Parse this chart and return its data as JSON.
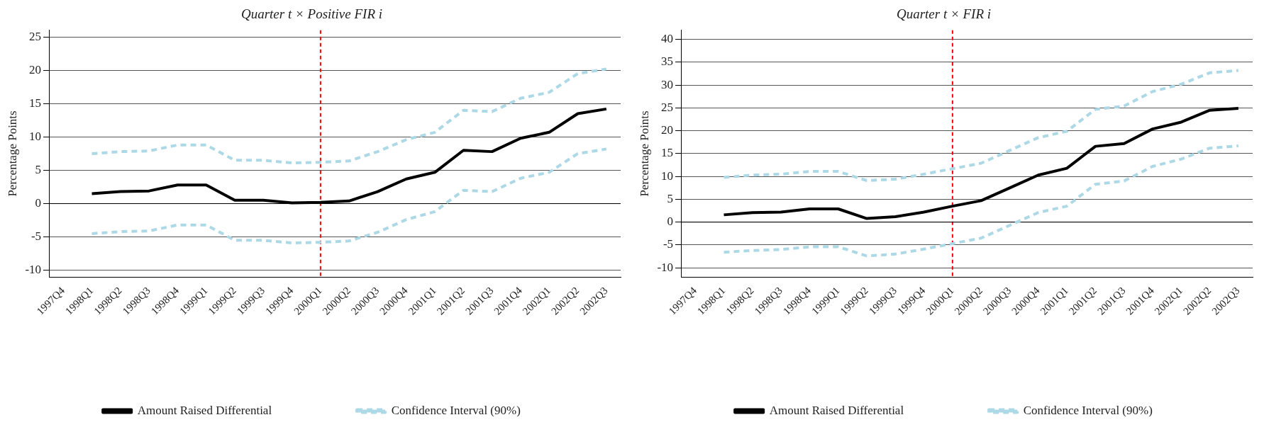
{
  "chart_data": [
    {
      "type": "line",
      "title": "Quarter t × Positive FIR i",
      "ylabel": "Percentage Points",
      "categories": [
        "1997Q4",
        "1998Q1",
        "1998Q2",
        "1998Q3",
        "1998Q4",
        "1999Q1",
        "1999Q2",
        "1999Q3",
        "1999Q4",
        "2000Q1",
        "2000Q2",
        "2000Q3",
        "2000Q4",
        "2001Q1",
        "2001Q2",
        "2001Q3",
        "2001Q4",
        "2002Q1",
        "2002Q2",
        "2002Q3"
      ],
      "series": [
        {
          "name": "Amount Raised Differential",
          "color": "#000000",
          "line_style": "solid",
          "values": [
            null,
            1.5,
            1.8,
            1.9,
            2.8,
            2.8,
            0.5,
            0.5,
            0.1,
            0.2,
            0.4,
            1.8,
            3.7,
            4.7,
            8.0,
            7.8,
            9.8,
            10.7,
            13.5,
            14.2
          ]
        },
        {
          "name": "Confidence Interval (90%)",
          "color": "#add8e6",
          "line_style": "dashed",
          "values": [
            null,
            7.5,
            7.8,
            7.9,
            8.8,
            8.8,
            6.5,
            6.5,
            6.1,
            6.2,
            6.4,
            7.8,
            9.6,
            10.7,
            14.0,
            13.8,
            15.8,
            16.7,
            19.5,
            20.2
          ]
        },
        {
          "color": "#add8e6",
          "line_style": "dashed",
          "values": [
            null,
            -4.5,
            -4.2,
            -4.1,
            -3.2,
            -3.2,
            -5.5,
            -5.5,
            -5.9,
            -5.8,
            -5.6,
            -4.3,
            -2.4,
            -1.2,
            2.0,
            1.8,
            3.8,
            4.7,
            7.5,
            8.2
          ]
        }
      ],
      "ylim": [
        -11,
        26
      ],
      "yticks": [
        -10,
        -5,
        0,
        5,
        10,
        15,
        20,
        25
      ],
      "grid": "y",
      "legend": "bottom",
      "ref_lines": [
        {
          "axis": "x",
          "value": "2000Q1",
          "color": "#ff0000",
          "line_style": "dashed"
        },
        {
          "axis": "y",
          "value": 0,
          "color": "#000000",
          "line_style": "solid"
        }
      ]
    },
    {
      "type": "line",
      "title": "Quarter t × FIR i",
      "ylabel": "Percentage Points",
      "categories": [
        "1997Q4",
        "1998Q1",
        "1998Q2",
        "1998Q3",
        "1998Q4",
        "1999Q1",
        "1999Q2",
        "1999Q3",
        "1999Q4",
        "2000Q1",
        "2000Q2",
        "2000Q3",
        "2000Q4",
        "2001Q1",
        "2001Q2",
        "2001Q3",
        "2001Q4",
        "2002Q1",
        "2002Q2",
        "2002Q3"
      ],
      "series": [
        {
          "name": "Amount Raised Differential",
          "color": "#000000",
          "line_style": "solid",
          "values": [
            null,
            1.6,
            2.1,
            2.2,
            2.9,
            2.9,
            0.8,
            1.2,
            2.2,
            3.5,
            4.7,
            7.5,
            10.3,
            11.8,
            16.6,
            17.2,
            20.4,
            21.9,
            24.5,
            24.9
          ]
        },
        {
          "name": "Confidence Interval (90%)",
          "color": "#add8e6",
          "line_style": "dashed",
          "values": [
            null,
            9.8,
            10.3,
            10.5,
            11.1,
            11.1,
            9.1,
            9.4,
            10.5,
            11.7,
            12.9,
            15.7,
            18.5,
            19.9,
            24.7,
            25.4,
            28.6,
            30.2,
            32.7,
            33.2
          ]
        },
        {
          "color": "#add8e6",
          "line_style": "dashed",
          "values": [
            null,
            -6.6,
            -6.2,
            -6.0,
            -5.4,
            -5.4,
            -7.4,
            -7.0,
            -5.9,
            -4.7,
            -3.5,
            -0.7,
            2.1,
            3.5,
            8.3,
            9.0,
            12.2,
            13.8,
            16.2,
            16.7
          ]
        }
      ],
      "ylim": [
        -12,
        42
      ],
      "yticks": [
        -10,
        -5,
        0,
        5,
        10,
        15,
        20,
        25,
        30,
        35,
        40
      ],
      "grid": "y",
      "legend": "bottom",
      "ref_lines": [
        {
          "axis": "x",
          "value": "2000Q1",
          "color": "#ff0000",
          "line_style": "dashed"
        },
        {
          "axis": "y",
          "value": 0,
          "color": "#000000",
          "line_style": "solid"
        }
      ]
    }
  ]
}
